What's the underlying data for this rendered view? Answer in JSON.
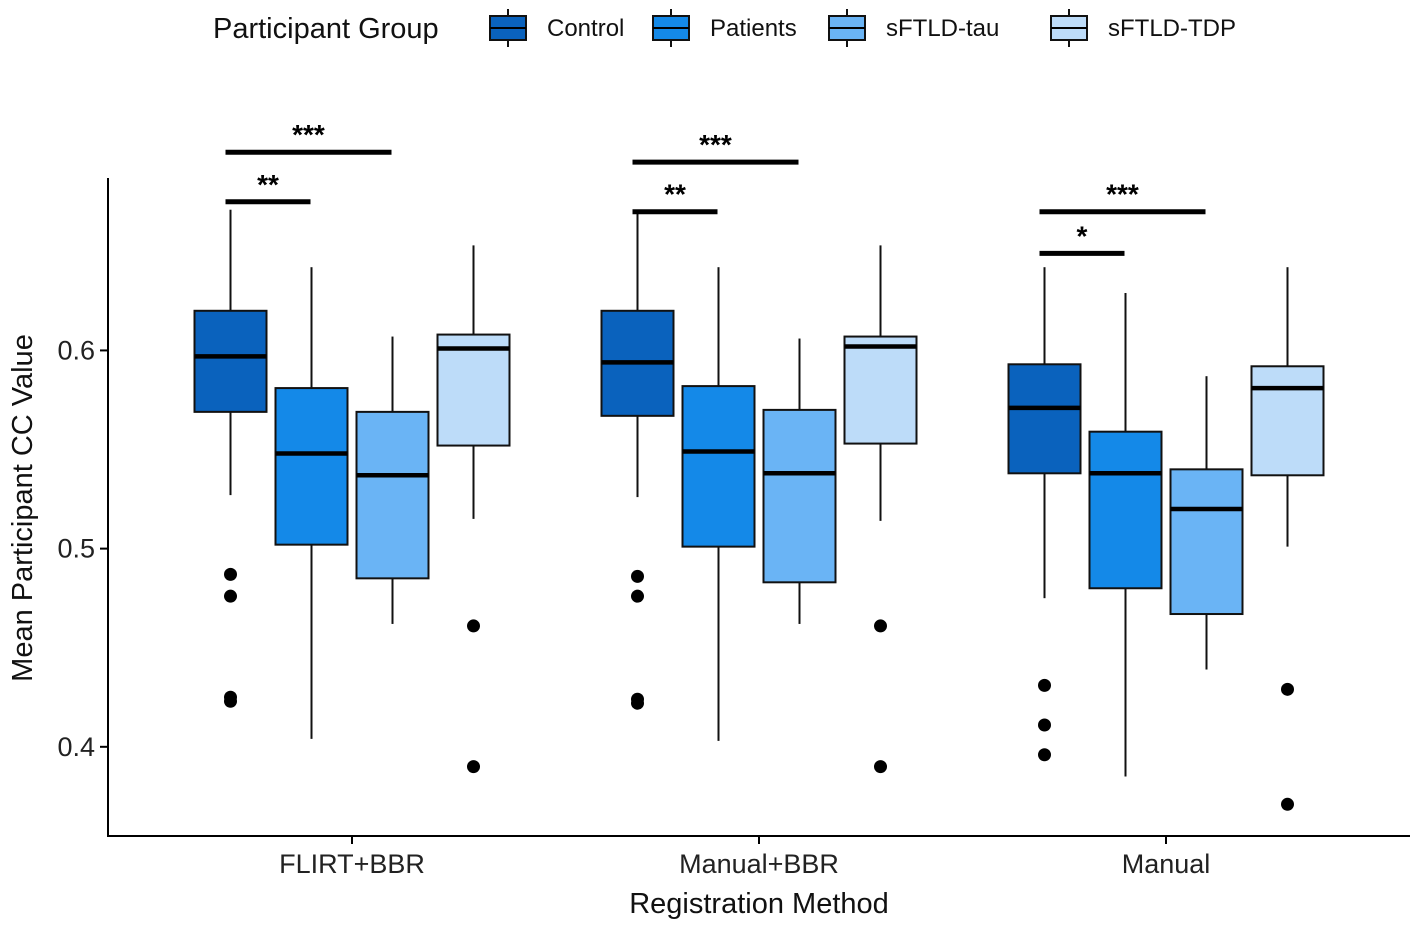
{
  "chart_data": {
    "type": "boxplot",
    "title": "",
    "xlabel": "Registration Method",
    "ylabel": "Mean Participant CC Value",
    "ylim": [
      0.355,
      0.687
    ],
    "yticks": [
      0.4,
      0.5,
      0.6
    ],
    "ytick_labels": [
      "0.4",
      "0.5",
      "0.6"
    ],
    "categories": [
      "FLIRT+BBR",
      "Manual+BBR",
      "Manual"
    ],
    "legend": {
      "title": "Participant Group",
      "position": "top"
    },
    "series": [
      {
        "name": "Control",
        "color": "#0a62bd",
        "boxes": [
          {
            "q1": 0.569,
            "median": 0.597,
            "q3": 0.62,
            "whisker_low": 0.527,
            "whisker_high": 0.671,
            "outliers": [
              0.487,
              0.476,
              0.425,
              0.423
            ]
          },
          {
            "q1": 0.567,
            "median": 0.594,
            "q3": 0.62,
            "whisker_low": 0.526,
            "whisker_high": 0.671,
            "outliers": [
              0.486,
              0.476,
              0.424,
              0.422
            ]
          },
          {
            "q1": 0.538,
            "median": 0.571,
            "q3": 0.593,
            "whisker_low": 0.475,
            "whisker_high": 0.642,
            "outliers": [
              0.431,
              0.411,
              0.396
            ]
          }
        ]
      },
      {
        "name": "Patients",
        "color": "#1489e8",
        "boxes": [
          {
            "q1": 0.502,
            "median": 0.548,
            "q3": 0.581,
            "whisker_low": 0.404,
            "whisker_high": 0.642,
            "outliers": []
          },
          {
            "q1": 0.501,
            "median": 0.549,
            "q3": 0.582,
            "whisker_low": 0.403,
            "whisker_high": 0.642,
            "outliers": []
          },
          {
            "q1": 0.48,
            "median": 0.538,
            "q3": 0.559,
            "whisker_low": 0.385,
            "whisker_high": 0.629,
            "outliers": []
          }
        ]
      },
      {
        "name": "sFTLD-tau",
        "color": "#6ab4f5",
        "boxes": [
          {
            "q1": 0.485,
            "median": 0.537,
            "q3": 0.569,
            "whisker_low": 0.462,
            "whisker_high": 0.607,
            "outliers": []
          },
          {
            "q1": 0.483,
            "median": 0.538,
            "q3": 0.57,
            "whisker_low": 0.462,
            "whisker_high": 0.606,
            "outliers": []
          },
          {
            "q1": 0.467,
            "median": 0.52,
            "q3": 0.54,
            "whisker_low": 0.439,
            "whisker_high": 0.587,
            "outliers": []
          }
        ]
      },
      {
        "name": "sFTLD-TDP",
        "color": "#bddcf9",
        "boxes": [
          {
            "q1": 0.552,
            "median": 0.601,
            "q3": 0.608,
            "whisker_low": 0.515,
            "whisker_high": 0.653,
            "outliers": [
              0.461,
              0.39
            ]
          },
          {
            "q1": 0.553,
            "median": 0.602,
            "q3": 0.607,
            "whisker_low": 0.514,
            "whisker_high": 0.653,
            "outliers": [
              0.461,
              0.39
            ]
          },
          {
            "q1": 0.537,
            "median": 0.581,
            "q3": 0.592,
            "whisker_low": 0.501,
            "whisker_high": 0.642,
            "outliers": [
              0.429,
              0.371
            ]
          }
        ]
      }
    ],
    "significance": [
      {
        "category": 0,
        "from_group": 0,
        "to_group": 1,
        "label": "**",
        "level": 0.675
      },
      {
        "category": 0,
        "from_group": 0,
        "to_group": 2,
        "label": "***",
        "level": 0.7
      },
      {
        "category": 1,
        "from_group": 0,
        "to_group": 1,
        "label": "**",
        "level": 0.67
      },
      {
        "category": 1,
        "from_group": 0,
        "to_group": 2,
        "label": "***",
        "level": 0.695
      },
      {
        "category": 2,
        "from_group": 0,
        "to_group": 1,
        "label": "*",
        "level": 0.649
      },
      {
        "category": 2,
        "from_group": 0,
        "to_group": 2,
        "label": "***",
        "level": 0.67
      }
    ]
  }
}
